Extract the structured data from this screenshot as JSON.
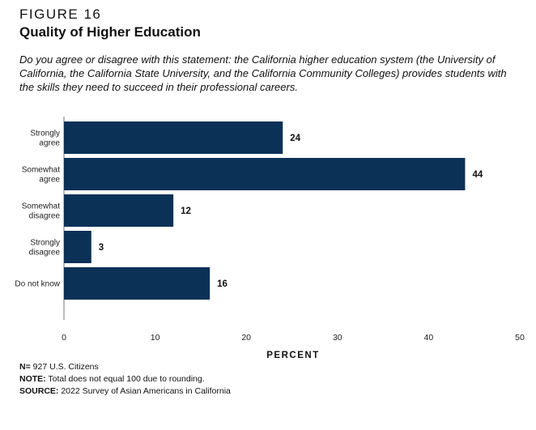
{
  "figure": {
    "label": "FIGURE 16",
    "title": "Quality of Higher Education",
    "question": "Do you agree or disagree with this statement: the California higher education system (the University of California, the California State University, and the California Community Colleges) provides students with the skills they need to succeed in their professional careers."
  },
  "chart_data": {
    "type": "bar",
    "orientation": "horizontal",
    "categories": [
      [
        "Strongly",
        "agree"
      ],
      [
        "Somewhat",
        "agree"
      ],
      [
        "Somewhat",
        "disagree"
      ],
      [
        "Strongly",
        "disagree"
      ],
      [
        "Do not know"
      ]
    ],
    "values": [
      24,
      44,
      12,
      3,
      16
    ],
    "value_labels": [
      "24",
      "44",
      "12",
      "3",
      "16"
    ],
    "xlabel": "PERCENT",
    "ylabel": "",
    "xlim": [
      0,
      50
    ],
    "ticks": [
      0,
      10,
      20,
      30,
      40,
      50
    ],
    "tick_labels": [
      "0",
      "10",
      "20",
      "30",
      "40",
      "50"
    ],
    "bar_color": "#0b3157",
    "grid": false
  },
  "notes": {
    "n_label": "N=",
    "n_text": " 927 U.S. Citizens",
    "note_label": "NOTE:",
    "note_text": " Total does not equal 100 due to rounding.",
    "source_label": "SOURCE:",
    "source_text": " 2022 Survey of Asian Americans in California"
  }
}
